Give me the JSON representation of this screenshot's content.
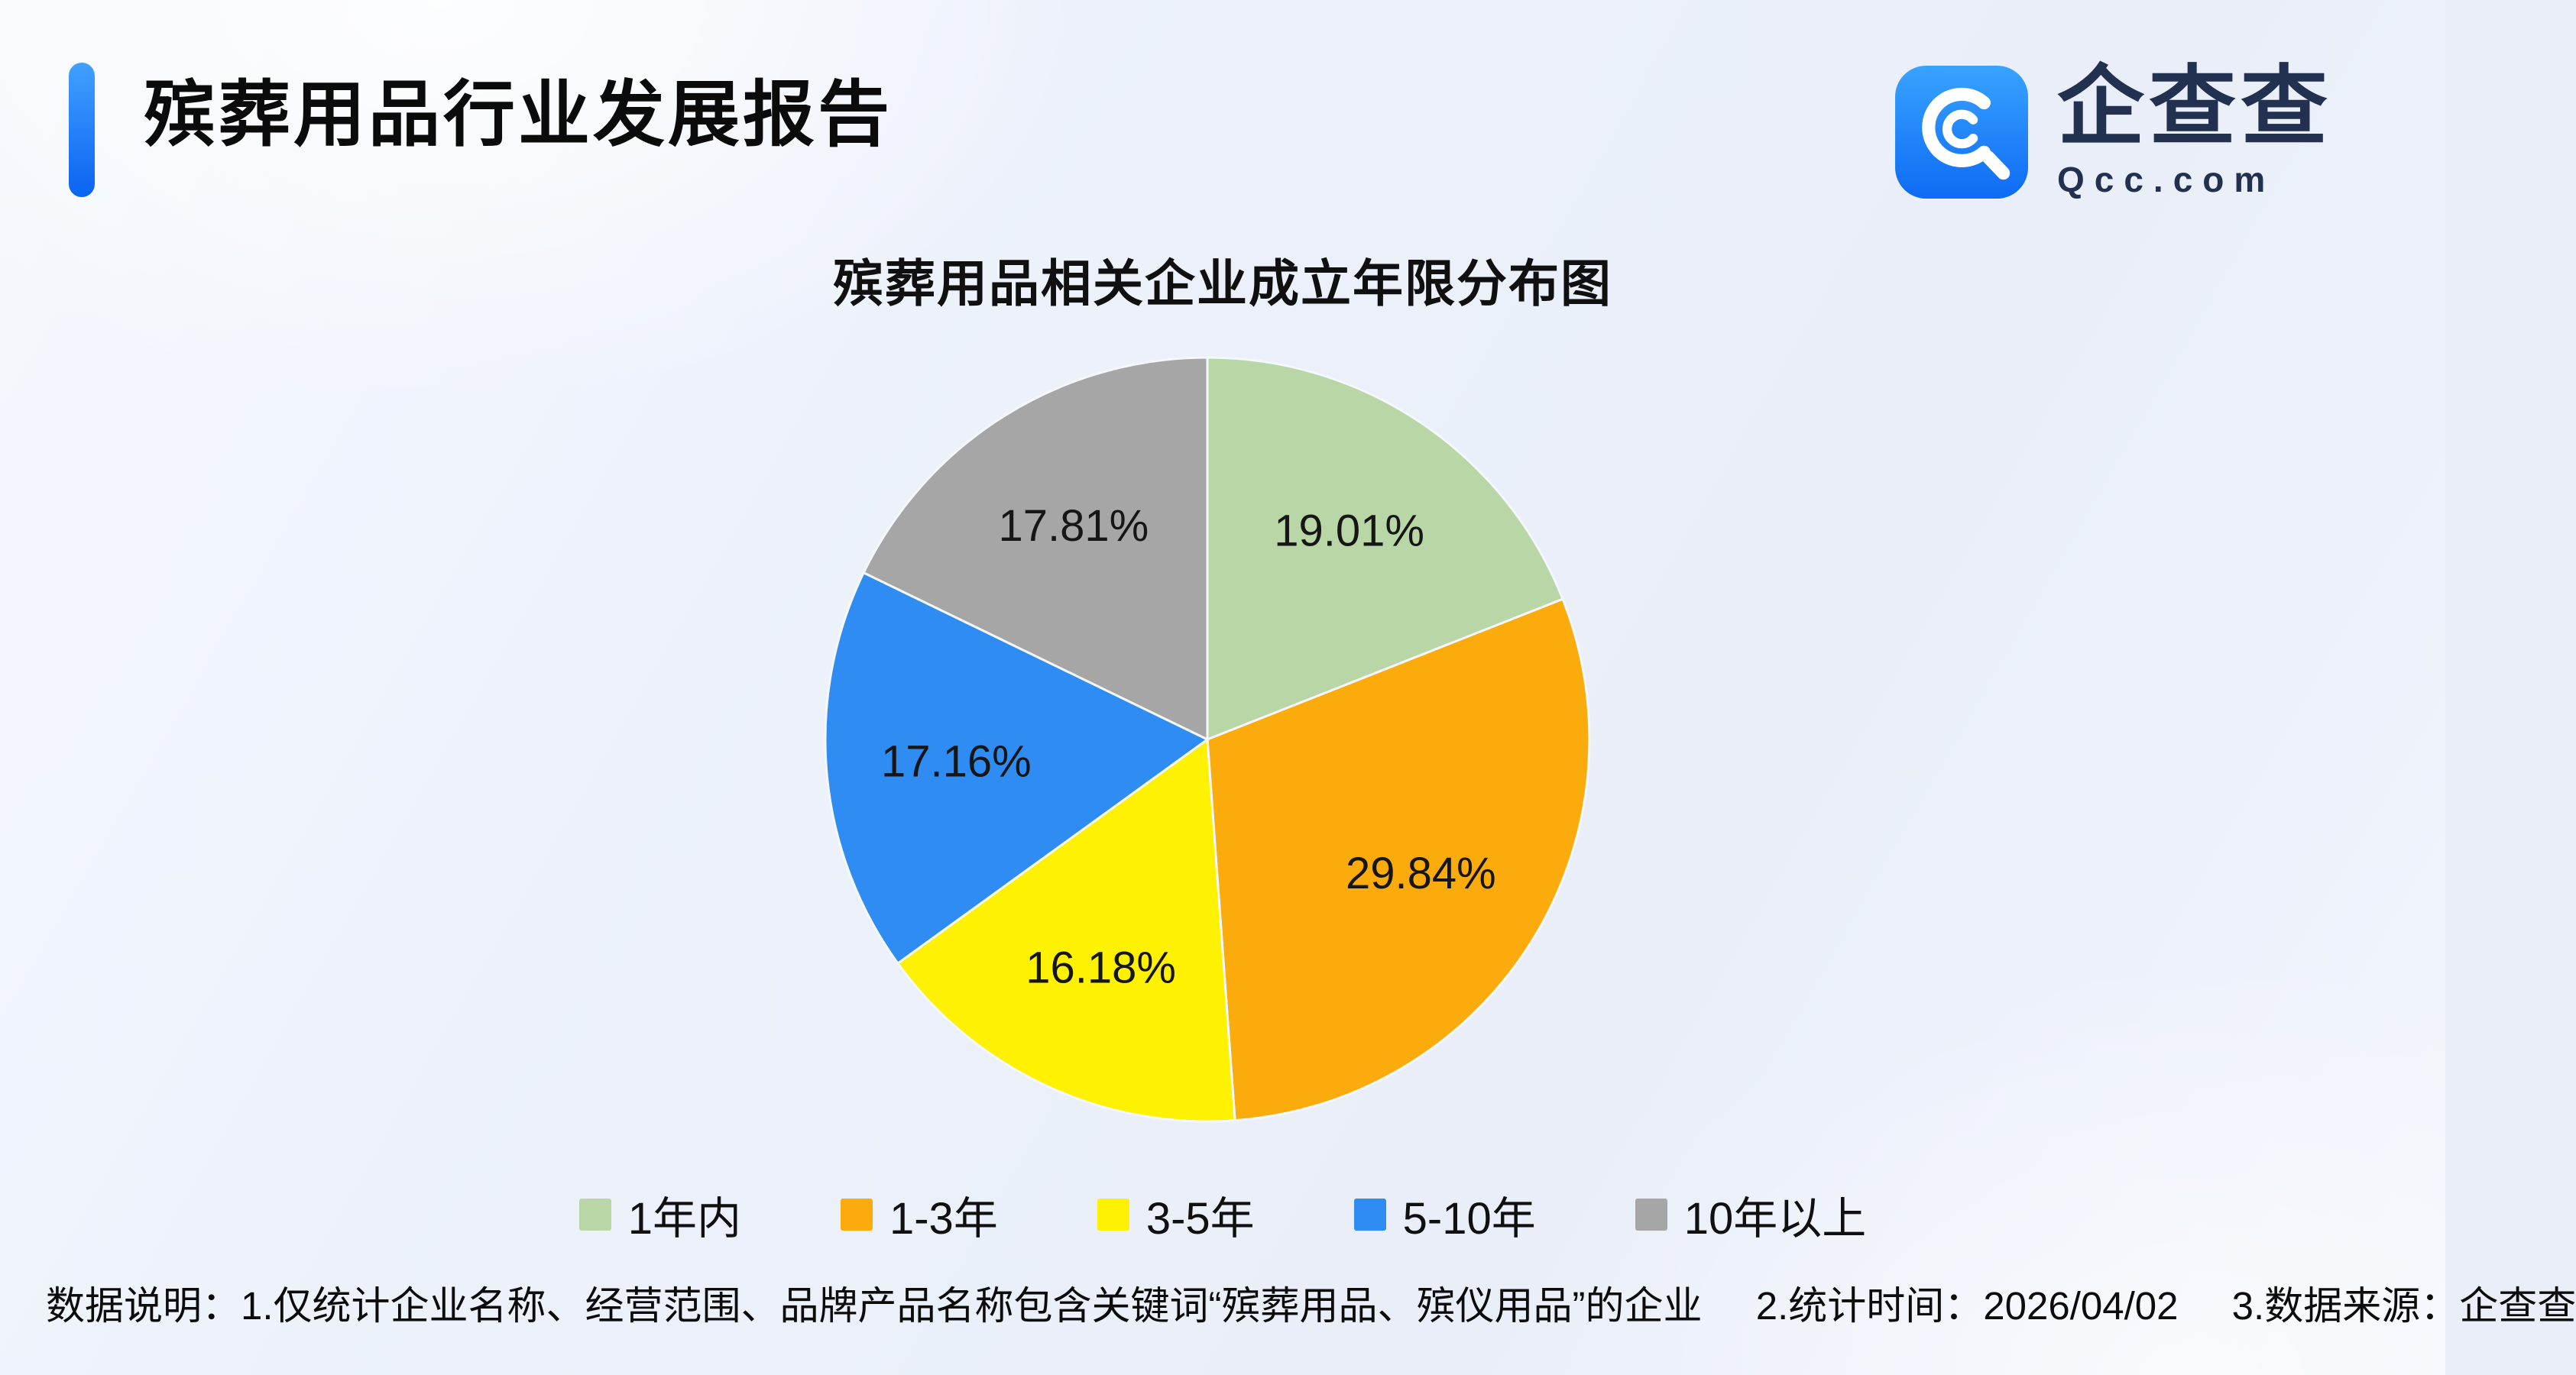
{
  "page": {
    "report_title": "殡葬用品行业发展报告"
  },
  "logo": {
    "brand_name": "企查查",
    "brand_domain": "Qcc.com"
  },
  "chart_data": {
    "type": "pie",
    "title": "殡葬用品相关企业成立年限分布图",
    "start_angle_deg": 0,
    "direction": "clockwise",
    "legend_position": "bottom",
    "value_unit": "%",
    "slices": [
      {
        "label": "1年内",
        "value": 19.01,
        "display": "19.01%",
        "color": "#b9d7a6"
      },
      {
        "label": "1-3年",
        "value": 29.84,
        "display": "29.84%",
        "color": "#fbab0c"
      },
      {
        "label": "3-5年",
        "value": 16.18,
        "display": "16.18%",
        "color": "#fef102"
      },
      {
        "label": "5-10年",
        "value": 17.16,
        "display": "17.16%",
        "color": "#2e8cf2"
      },
      {
        "label": "10年以上",
        "value": 17.81,
        "display": "17.81%",
        "color": "#a6a6a6"
      }
    ]
  },
  "footnote": {
    "prefix": "数据说明：",
    "items": [
      "1.仅统计企业名称、经营范围、品牌产品名称包含关键词“殡葬用品、殡仪用品”的企业",
      "2.统计时间：2026/04/02",
      "3.数据来源：企查查"
    ]
  }
}
